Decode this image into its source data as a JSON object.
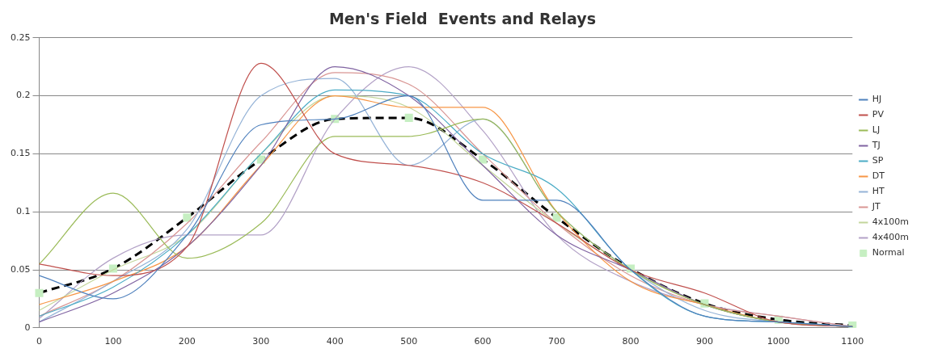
{
  "chart_data": {
    "type": "line",
    "title": "Men's Field  Events and Relays",
    "categories": [
      "0",
      "100",
      "200",
      "300",
      "400",
      "500",
      "600",
      "700",
      "800",
      "900",
      "1000",
      "1100"
    ],
    "ylim": [
      0,
      0.25
    ],
    "yticks": [
      0,
      0.05,
      0.1,
      0.15,
      0.2,
      0.25
    ],
    "grid": "y",
    "legend": "right",
    "marker": "none",
    "series": [
      {
        "name": "HJ",
        "color": "#4f81bd",
        "values": [
          0.045,
          0.025,
          0.08,
          0.175,
          0.18,
          0.2,
          0.11,
          0.11,
          0.05,
          0.01,
          0.005,
          0.001
        ]
      },
      {
        "name": "PV",
        "color": "#c0504d",
        "values": [
          0.055,
          0.045,
          0.07,
          0.228,
          0.15,
          0.14,
          0.125,
          0.09,
          0.05,
          0.03,
          0.005,
          0.001
        ]
      },
      {
        "name": "LJ",
        "color": "#9bbb59",
        "values": [
          0.055,
          0.116,
          0.06,
          0.09,
          0.165,
          0.165,
          0.18,
          0.1,
          0.05,
          0.02,
          0.005,
          0.001
        ]
      },
      {
        "name": "TJ",
        "color": "#8064a2",
        "values": [
          0.005,
          0.03,
          0.07,
          0.14,
          0.225,
          0.2,
          0.14,
          0.08,
          0.05,
          0.02,
          0.005,
          0.001
        ]
      },
      {
        "name": "SP",
        "color": "#4bacc6",
        "values": [
          0.01,
          0.035,
          0.08,
          0.15,
          0.205,
          0.2,
          0.15,
          0.12,
          0.05,
          0.01,
          0.005,
          0.001
        ]
      },
      {
        "name": "DT",
        "color": "#f79646",
        "values": [
          0.02,
          0.04,
          0.07,
          0.14,
          0.2,
          0.19,
          0.19,
          0.1,
          0.04,
          0.02,
          0.005,
          0.001
        ]
      },
      {
        "name": "HT",
        "color": "#95b3d7",
        "values": [
          0.005,
          0.04,
          0.085,
          0.2,
          0.215,
          0.14,
          0.18,
          0.1,
          0.05,
          0.015,
          0.005,
          0.001
        ]
      },
      {
        "name": "JT",
        "color": "#d99694",
        "values": [
          0.01,
          0.04,
          0.09,
          0.16,
          0.22,
          0.21,
          0.15,
          0.09,
          0.045,
          0.02,
          0.01,
          0.001
        ]
      },
      {
        "name": "4x100m",
        "color": "#c3d69b",
        "values": [
          0.015,
          0.05,
          0.08,
          0.15,
          0.2,
          0.19,
          0.14,
          0.09,
          0.05,
          0.02,
          0.005,
          0.001
        ]
      },
      {
        "name": "4x400m",
        "color": "#b3a2c7",
        "values": [
          0.008,
          0.06,
          0.08,
          0.08,
          0.18,
          0.225,
          0.17,
          0.08,
          0.04,
          0.02,
          0.01,
          0.001
        ]
      },
      {
        "name": "Normal",
        "color": "#000000",
        "line_style": "dashed",
        "marker": "square",
        "values": [
          0.03,
          0.051,
          0.095,
          0.145,
          0.18,
          0.181,
          0.145,
          0.095,
          0.051,
          0.021,
          0.007,
          0.002
        ]
      }
    ]
  }
}
